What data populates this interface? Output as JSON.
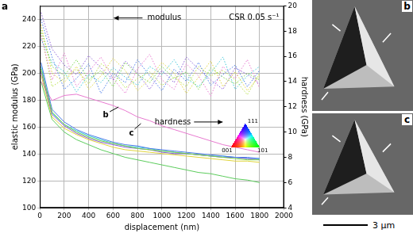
{
  "chart_data": {
    "type": "line",
    "panel_label": "a",
    "x_label": "displacement (nm)",
    "y_label": "elastic modulus (GPa)",
    "y2_label": "hardness (GPa)",
    "xlim": [
      0,
      2000
    ],
    "xticks": [
      0,
      200,
      400,
      600,
      800,
      1000,
      1200,
      1400,
      1600,
      1800,
      2000
    ],
    "ylim": [
      100,
      250
    ],
    "yticks": [
      100,
      120,
      140,
      160,
      180,
      200,
      220,
      240
    ],
    "y2lim": [
      4,
      20
    ],
    "y2ticks": [
      4,
      6,
      8,
      10,
      12,
      14,
      16,
      18,
      20
    ],
    "grid": true,
    "marker": "none",
    "annotations": [
      "modulus",
      "hardness",
      "CSR 0.05 s⁻¹",
      "b",
      "c"
    ],
    "color_key": [
      "111",
      "001",
      "101"
    ],
    "x": [
      10,
      100,
      200,
      300,
      400,
      500,
      600,
      700,
      800,
      900,
      1000,
      1100,
      1200,
      1300,
      1400,
      1500,
      1600,
      1700,
      1800
    ],
    "series": [
      {
        "color": "#7ad64a",
        "line_style": "dotted",
        "axis": "y",
        "values": [
          232,
          205,
          198,
          210,
          195,
          202,
          190,
          208,
          199,
          193,
          205,
          196,
          201,
          188,
          204,
          197,
          192,
          200,
          195
        ]
      },
      {
        "color": "#4a7be8",
        "line_style": "dotted",
        "axis": "y",
        "values": [
          240,
          212,
          188,
          196,
          207,
          185,
          200,
          193,
          210,
          198,
          187,
          203,
          194,
          208,
          191,
          199,
          206,
          190,
          202
        ]
      },
      {
        "color": "#e87ad0",
        "line_style": "dotted",
        "axis": "y",
        "values": [
          228,
          195,
          215,
          190,
          201,
          212,
          196,
          185,
          203,
          214,
          195,
          188,
          207,
          198,
          183,
          205,
          196,
          210,
          189
        ]
      },
      {
        "color": "#e0d43a",
        "line_style": "dotted",
        "axis": "y",
        "values": [
          236,
          200,
          193,
          205,
          188,
          198,
          211,
          202,
          187,
          196,
          208,
          200,
          185,
          197,
          209,
          190,
          201,
          187,
          198
        ]
      },
      {
        "color": "#3fc7d9",
        "line_style": "dotted",
        "axis": "y",
        "values": [
          225,
          208,
          201,
          186,
          199,
          193,
          204,
          197,
          191,
          205,
          199,
          210,
          196,
          190,
          200,
          212,
          188,
          198,
          205
        ]
      },
      {
        "color": "#8a5cd6",
        "line_style": "dotted",
        "axis": "y",
        "values": [
          245,
          218,
          206,
          199,
          213,
          204,
          195,
          209,
          200,
          188,
          202,
          193,
          212,
          203,
          195,
          188,
          204,
          199,
          192
        ]
      },
      {
        "color": "#b8e04a",
        "line_style": "dotted",
        "axis": "y",
        "values": [
          230,
          190,
          196,
          203,
          192,
          207,
          201,
          189,
          196,
          201,
          191,
          197,
          190,
          205,
          198,
          202,
          195,
          184,
          200
        ]
      },
      {
        "color": "#7ad64a",
        "line_style": "solid",
        "axis": "y2",
        "values": [
          15,
          11.6,
          10.6,
          10.0,
          9.6,
          9.3,
          9.1,
          8.9,
          8.7,
          8.6,
          8.5,
          8.4,
          8.3,
          8.2,
          8.1,
          8.0,
          7.9,
          7.8,
          7.8
        ]
      },
      {
        "color": "#4a7be8",
        "line_style": "solid",
        "axis": "y2",
        "values": [
          15.5,
          11.8,
          10.8,
          10.2,
          9.8,
          9.5,
          9.2,
          9.0,
          8.9,
          8.7,
          8.6,
          8.5,
          8.4,
          8.3,
          8.2,
          8.1,
          8.0,
          8.0,
          7.9
        ]
      },
      {
        "color": "#8a5cd6",
        "line_style": "solid",
        "axis": "y2",
        "values": [
          14.8,
          11.4,
          10.5,
          9.9,
          9.5,
          9.2,
          9.0,
          8.8,
          8.7,
          8.6,
          8.4,
          8.3,
          8.3,
          8.2,
          8.1,
          8.0,
          8.0,
          7.9,
          7.8
        ]
      },
      {
        "color": "#e0d43a",
        "line_style": "solid",
        "axis": "y2",
        "values": [
          14.5,
          11.2,
          10.3,
          9.8,
          9.4,
          9.1,
          8.8,
          8.6,
          8.5,
          8.4,
          8.3,
          8.2,
          8.1,
          8.0,
          7.9,
          7.8,
          7.7,
          7.7,
          7.6
        ]
      },
      {
        "color": "#3fc7d9",
        "line_style": "solid",
        "axis": "y2",
        "values": [
          15.2,
          11.5,
          10.6,
          10.1,
          9.7,
          9.4,
          9.1,
          8.9,
          8.8,
          8.7,
          8.5,
          8.4,
          8.3,
          8.2,
          8.1,
          8.1,
          8.0,
          7.9,
          7.9
        ]
      },
      {
        "color": "#e87ad0",
        "line_style": "solid",
        "axis": "y2",
        "values": [
          14,
          12.5,
          12.9,
          13.0,
          12.7,
          12.4,
          12.1,
          11.7,
          11.2,
          10.9,
          10.5,
          10.2,
          9.9,
          9.6,
          9.3,
          9.0,
          8.8,
          8.6,
          8.4
        ]
      },
      {
        "color": "#5ccc5c",
        "line_style": "solid",
        "axis": "y2",
        "values": [
          14,
          11.0,
          10.0,
          9.4,
          9.0,
          8.6,
          8.3,
          8.0,
          7.8,
          7.6,
          7.4,
          7.2,
          7.0,
          6.8,
          6.7,
          6.5,
          6.3,
          6.2,
          6.0
        ]
      }
    ]
  },
  "panels": [
    "b",
    "c"
  ],
  "scale_bar": "3 μm"
}
